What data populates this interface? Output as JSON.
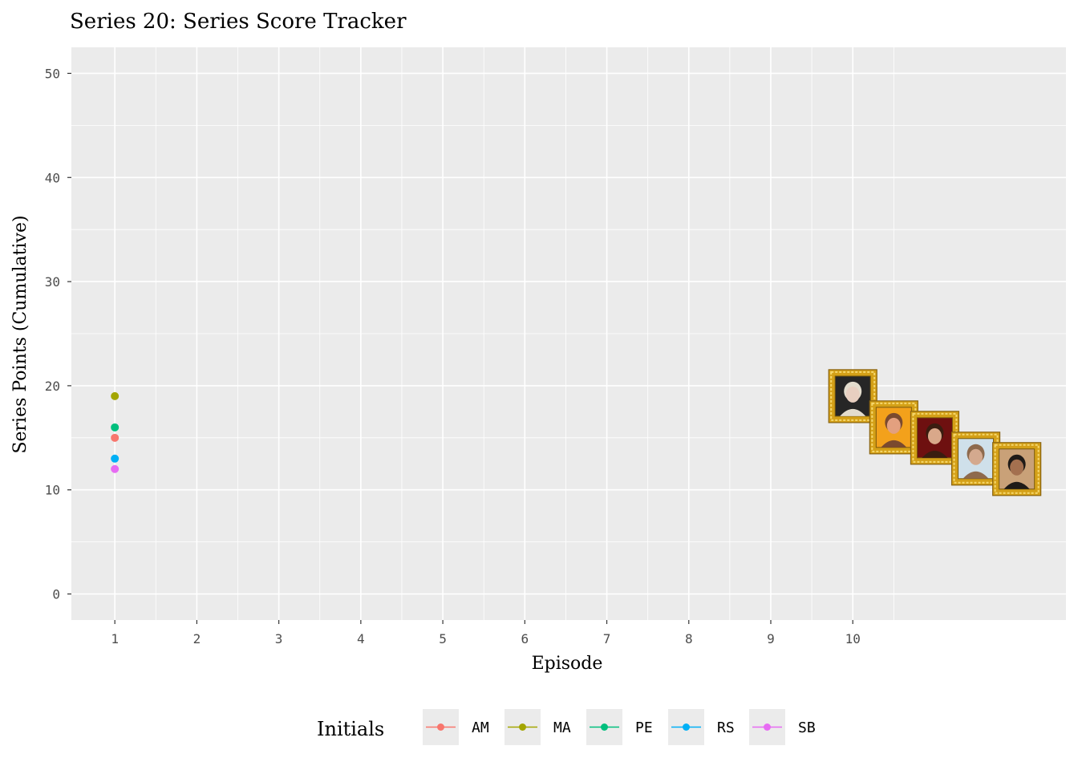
{
  "chart_data": {
    "type": "line",
    "title": "Series 20: Series Score Tracker",
    "xlabel": "Episode",
    "ylabel": "Series Points (Cumulative)",
    "x_ticks": [
      1,
      2,
      3,
      4,
      5,
      6,
      7,
      8,
      9,
      10
    ],
    "x_tick_labels": [
      "1",
      "2",
      "3",
      "4",
      "5",
      "6",
      "7",
      "8",
      "9",
      "10"
    ],
    "y_ticks": [
      0,
      10,
      20,
      30,
      40,
      50
    ],
    "y_tick_labels": [
      "0",
      "10",
      "20",
      "30",
      "40",
      "50"
    ],
    "xlim": [
      0.47,
      12.6
    ],
    "ylim": [
      -2.5,
      52.5
    ],
    "grid": true,
    "legend": {
      "title": "Initials",
      "position": "bottom"
    },
    "series": [
      {
        "name": "AM",
        "color": "#F8766D",
        "points": [
          {
            "x": 1,
            "y": 15
          }
        ]
      },
      {
        "name": "MA",
        "color": "#A3A500",
        "points": [
          {
            "x": 1,
            "y": 19
          }
        ]
      },
      {
        "name": "PE",
        "color": "#00BF7D",
        "points": [
          {
            "x": 1,
            "y": 16
          }
        ]
      },
      {
        "name": "RS",
        "color": "#00B0F6",
        "points": [
          {
            "x": 1,
            "y": 13
          }
        ]
      },
      {
        "name": "SB",
        "color": "#E76BF3",
        "points": [
          {
            "x": 1,
            "y": 12
          }
        ]
      }
    ],
    "portraits": [
      {
        "x": 10,
        "y": 19,
        "icon": "portrait-blonde-woman-icon",
        "bg": "#262626",
        "skin": "#e8cfc0",
        "hair": "#e3dccd"
      },
      {
        "x": 10.5,
        "y": 16,
        "icon": "portrait-smiling-man-icon",
        "bg": "#f3a11b",
        "skin": "#e3a07f",
        "hair": "#7a4a2f"
      },
      {
        "x": 11,
        "y": 15,
        "icon": "portrait-dark-haired-woman-icon",
        "bg": "#6e1010",
        "skin": "#d9a88a",
        "hair": "#3a1d10"
      },
      {
        "x": 11.5,
        "y": 13,
        "icon": "portrait-bearded-man-icon",
        "bg": "#cfe0ea",
        "skin": "#d4a98e",
        "hair": "#8e6a4d"
      },
      {
        "x": 12,
        "y": 12,
        "icon": "portrait-glasses-man-icon",
        "bg": "#c9a178",
        "skin": "#a4704f",
        "hair": "#1e1a17"
      }
    ],
    "colors": {
      "panel_bg": "#EBEBEB",
      "grid": "#FFFFFF",
      "tick_text": "#4D4D4D",
      "tick_mark": "#333333",
      "frame": "#D4A017"
    }
  }
}
